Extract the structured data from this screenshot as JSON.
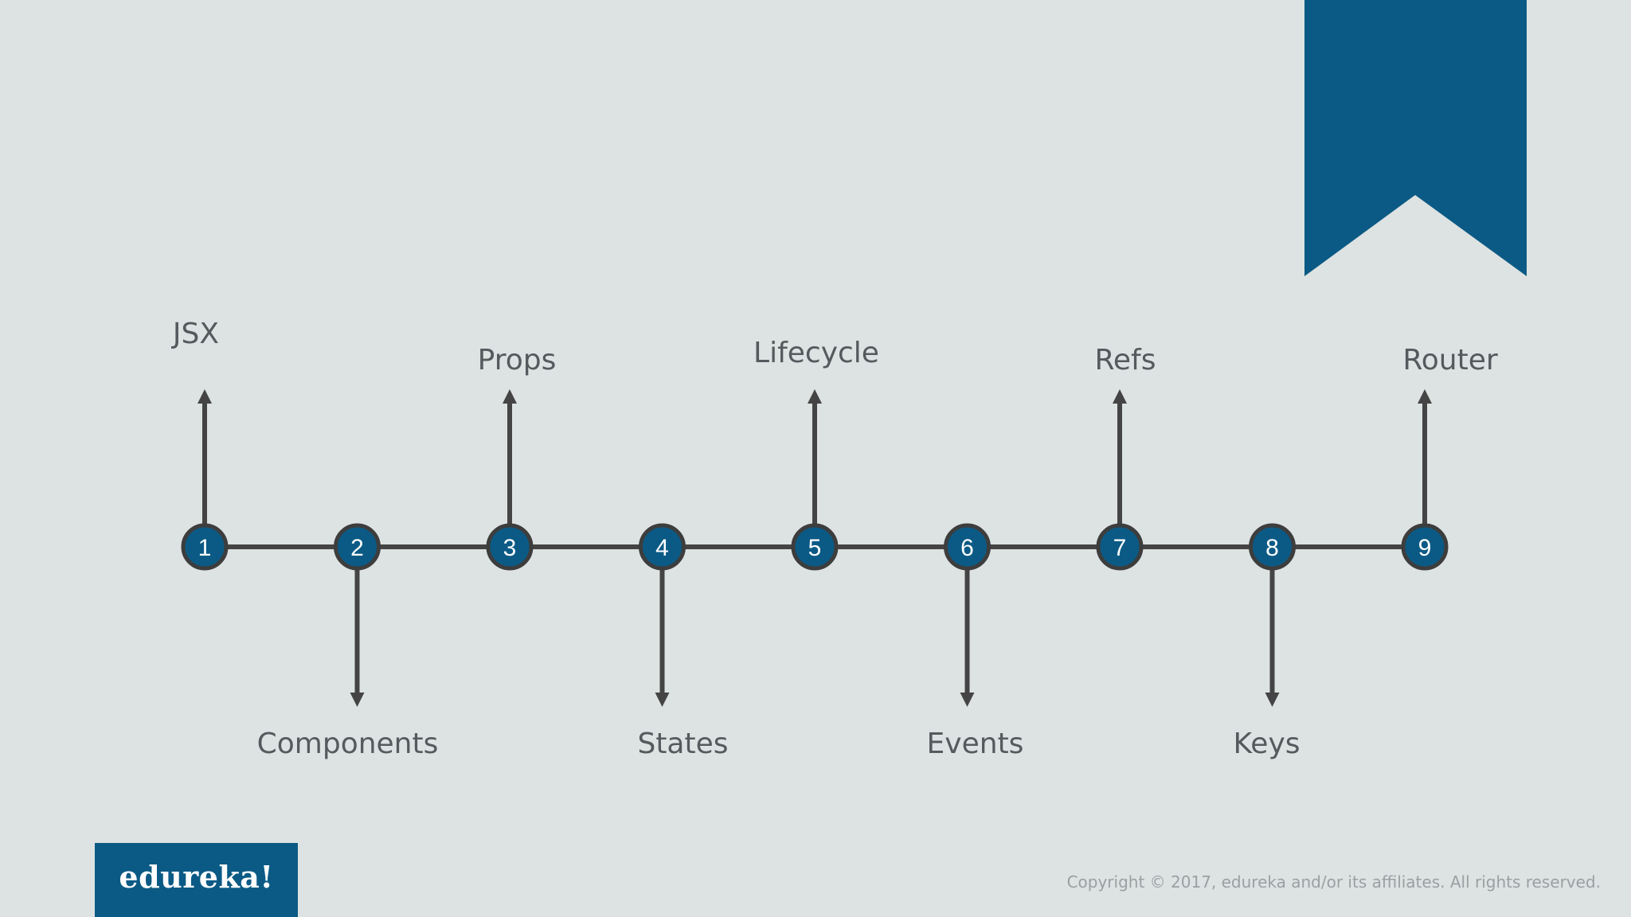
{
  "colors": {
    "background": "#dde3e2",
    "accent": "#0b5a85",
    "line": "#444444",
    "node_border": "#3d3d3d",
    "label": "#555a5e"
  },
  "timeline": {
    "steps": [
      {
        "number": "1",
        "label": "JSX",
        "direction": "up"
      },
      {
        "number": "2",
        "label": "Components",
        "direction": "down"
      },
      {
        "number": "3",
        "label": "Props",
        "direction": "up"
      },
      {
        "number": "4",
        "label": "States",
        "direction": "down"
      },
      {
        "number": "5",
        "label": "Lifecycle",
        "direction": "up"
      },
      {
        "number": "6",
        "label": "Events",
        "direction": "down"
      },
      {
        "number": "7",
        "label": "Refs",
        "direction": "up"
      },
      {
        "number": "8",
        "label": "Keys",
        "direction": "down"
      },
      {
        "number": "9",
        "label": "Router",
        "direction": "up"
      }
    ]
  },
  "footer": {
    "logo_text": "edureka!",
    "copyright": "Copyright © 2017, edureka and/or its affiliates. All rights reserved."
  }
}
